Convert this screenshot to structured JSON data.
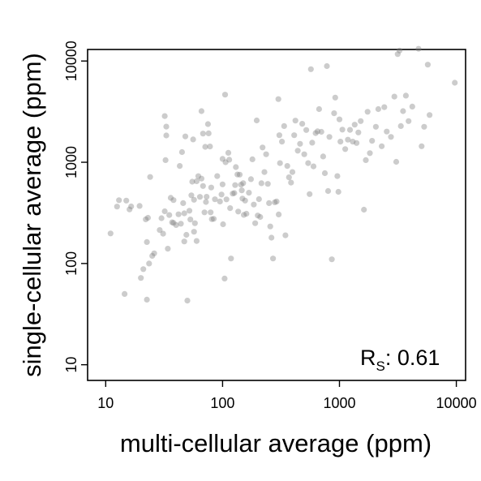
{
  "chart_data": {
    "type": "scatter",
    "xlabel": "multi-cellular average (ppm)",
    "ylabel": "single-cellular average (ppm)",
    "x_scale": "log",
    "y_scale": "log",
    "xlim": [
      7,
      12000
    ],
    "ylim": [
      7,
      13000
    ],
    "x_ticks": [
      10,
      100,
      1000,
      10000
    ],
    "x_tick_labels": [
      "10",
      "100",
      "1000",
      "10000"
    ],
    "y_ticks": [
      10,
      100,
      1000,
      10000
    ],
    "y_tick_labels": [
      "10",
      "100",
      "1000",
      "10000"
    ],
    "grid": false,
    "point_color": "#808080",
    "point_opacity": 0.4,
    "annotation": {
      "main": "R",
      "subscript": "S",
      "value": ": 0.61",
      "position": "bottom-right"
    },
    "series": [
      {
        "points": [
          [
            11,
            198
          ],
          [
            12.5,
            365
          ],
          [
            13,
            422
          ],
          [
            14.5,
            50
          ],
          [
            15,
            418
          ],
          [
            16,
            342
          ],
          [
            16.5,
            366
          ],
          [
            19.5,
            370
          ],
          [
            20,
            72
          ],
          [
            21,
            88
          ],
          [
            22,
            273
          ],
          [
            22.5,
            44
          ],
          [
            22.5,
            163
          ],
          [
            23,
            283
          ],
          [
            23.5,
            100
          ],
          [
            24,
            715
          ],
          [
            25,
            119
          ],
          [
            26,
            126
          ],
          [
            29,
            214
          ],
          [
            30,
            280
          ],
          [
            31,
            197
          ],
          [
            32,
            328
          ],
          [
            32,
            2860
          ],
          [
            32.5,
            1050
          ],
          [
            33,
            2250
          ],
          [
            33,
            1840
          ],
          [
            34,
            140
          ],
          [
            35,
            301
          ],
          [
            36,
            445
          ],
          [
            37,
            255
          ],
          [
            38,
            252
          ],
          [
            38,
            423
          ],
          [
            40,
            240
          ],
          [
            42,
            306
          ],
          [
            43,
            920
          ],
          [
            44,
            247
          ],
          [
            45,
            1260
          ],
          [
            46,
            395
          ],
          [
            47,
            313
          ],
          [
            47,
            165
          ],
          [
            48,
            1800
          ],
          [
            49,
            192
          ],
          [
            50,
            43
          ],
          [
            52,
            332
          ],
          [
            53,
            272
          ],
          [
            54,
            471
          ],
          [
            55,
            643
          ],
          [
            56,
            1680
          ],
          [
            57,
            206
          ],
          [
            57,
            426
          ],
          [
            58,
            250
          ],
          [
            60,
            167
          ],
          [
            60,
            650
          ],
          [
            62,
            728
          ],
          [
            64,
            455
          ],
          [
            66,
            3200
          ],
          [
            66,
            690
          ],
          [
            68,
            583
          ],
          [
            68,
            1920
          ],
          [
            70,
            320
          ],
          [
            71,
            1420
          ],
          [
            72,
            405
          ],
          [
            73,
            456
          ],
          [
            75,
            2380
          ],
          [
            76,
            1930
          ],
          [
            78,
            1430
          ],
          [
            79,
            320
          ],
          [
            80,
            563
          ],
          [
            81,
            274
          ],
          [
            84,
            276
          ],
          [
            86,
            431
          ],
          [
            90,
            730
          ],
          [
            95,
            410
          ],
          [
            98,
            480
          ],
          [
            100,
            1080
          ],
          [
            100,
            605
          ],
          [
            101,
            244
          ],
          [
            104,
            71
          ],
          [
            105,
            4650
          ],
          [
            106,
            1000
          ],
          [
            108,
            430
          ],
          [
            112,
            1240
          ],
          [
            114,
            1060
          ],
          [
            116,
            352
          ],
          [
            118,
            112
          ],
          [
            122,
            490
          ],
          [
            126,
            496
          ],
          [
            128,
            595
          ],
          [
            130,
            895
          ],
          [
            134,
            757
          ],
          [
            136,
            326
          ],
          [
            140,
            755
          ],
          [
            144,
            600
          ],
          [
            146,
            528
          ],
          [
            148,
            438
          ],
          [
            150,
            622
          ],
          [
            152,
            302
          ],
          [
            156,
            418
          ],
          [
            160,
            310
          ],
          [
            168,
            500
          ],
          [
            175,
            680
          ],
          [
            180,
            1070
          ],
          [
            185,
            382
          ],
          [
            190,
            250
          ],
          [
            196,
            2590
          ],
          [
            200,
            298
          ],
          [
            205,
            432
          ],
          [
            210,
            288
          ],
          [
            215,
            620
          ],
          [
            220,
            1400
          ],
          [
            228,
            800
          ],
          [
            236,
            1200
          ],
          [
            244,
            612
          ],
          [
            250,
            395
          ],
          [
            256,
            232
          ],
          [
            262,
            180
          ],
          [
            270,
            112
          ],
          [
            280,
            402
          ],
          [
            290,
            410
          ],
          [
            300,
            4200
          ],
          [
            302,
            305
          ],
          [
            306,
            1850
          ],
          [
            310,
            980
          ],
          [
            322,
            1600
          ],
          [
            336,
            2280
          ],
          [
            345,
            190
          ],
          [
            358,
            920
          ],
          [
            370,
            710
          ],
          [
            385,
            630
          ],
          [
            396,
            800
          ],
          [
            410,
            1850
          ],
          [
            420,
            2580
          ],
          [
            440,
            1300
          ],
          [
            460,
            1520
          ],
          [
            480,
            2400
          ],
          [
            500,
            1200
          ],
          [
            520,
            2080
          ],
          [
            540,
            980
          ],
          [
            555,
            485
          ],
          [
            570,
            8300
          ],
          [
            585,
            1560
          ],
          [
            600,
            910
          ],
          [
            625,
            1940
          ],
          [
            650,
            2020
          ],
          [
            670,
            3350
          ],
          [
            700,
            2000
          ],
          [
            725,
            1140
          ],
          [
            750,
            780
          ],
          [
            780,
            8900
          ],
          [
            800,
            520
          ],
          [
            820,
            1780
          ],
          [
            860,
            110
          ],
          [
            900,
            3050
          ],
          [
            920,
            4350
          ],
          [
            960,
            730
          ],
          [
            980,
            510
          ],
          [
            1000,
            2650
          ],
          [
            1020,
            1600
          ],
          [
            1060,
            2100
          ],
          [
            1120,
            1350
          ],
          [
            1180,
            1670
          ],
          [
            1230,
            2090
          ],
          [
            1300,
            1600
          ],
          [
            1350,
            2350
          ],
          [
            1400,
            1550
          ],
          [
            1450,
            1970
          ],
          [
            1520,
            2550
          ],
          [
            1620,
            340
          ],
          [
            1680,
            1050
          ],
          [
            1740,
            3150
          ],
          [
            1820,
            1230
          ],
          [
            1900,
            1630
          ],
          [
            2050,
            2240
          ],
          [
            2150,
            3350
          ],
          [
            2300,
            1440
          ],
          [
            2420,
            3500
          ],
          [
            2540,
            2010
          ],
          [
            2760,
            1780
          ],
          [
            2950,
            4450
          ],
          [
            3060,
            1010
          ],
          [
            3150,
            11700
          ],
          [
            3270,
            12700
          ],
          [
            3350,
            2280
          ],
          [
            3500,
            3200
          ],
          [
            3700,
            4550
          ],
          [
            3900,
            2550
          ],
          [
            4200,
            3550
          ],
          [
            4750,
            13200
          ],
          [
            5050,
            1440
          ],
          [
            5300,
            2240
          ],
          [
            5700,
            9200
          ],
          [
            5900,
            2930
          ],
          [
            9700,
            6100
          ]
        ]
      }
    ]
  }
}
